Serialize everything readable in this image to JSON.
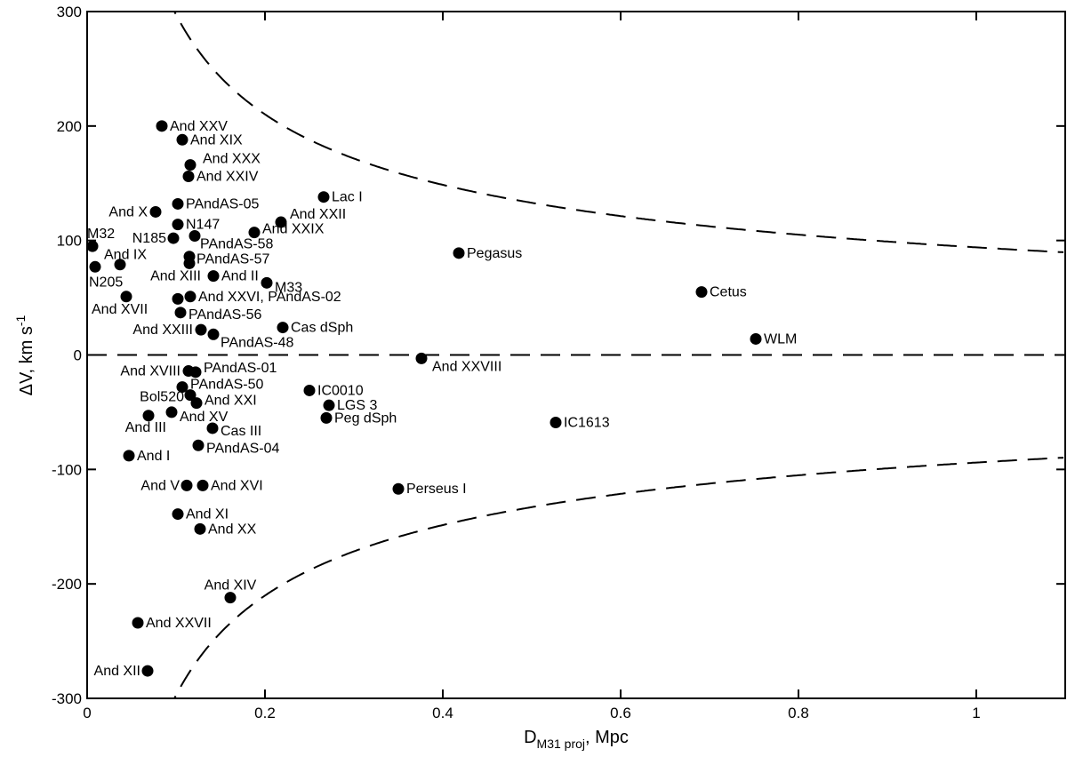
{
  "chart_data": {
    "type": "scatter",
    "title": "",
    "xlabel": {
      "main": "D",
      "sub": "M31 proj",
      "rest": ", Mpc"
    },
    "ylabel": {
      "main": "ΔV, km s",
      "sup": "-1"
    },
    "xlim": [
      0,
      1.1
    ],
    "ylim": [
      -300,
      300
    ],
    "xticks": [
      0,
      0.2,
      0.4,
      0.6,
      0.8,
      1
    ],
    "xtick_labels": [
      "0",
      "0.2",
      "0.4",
      "0.6",
      "0.8",
      "1"
    ],
    "yticks": [
      -300,
      -200,
      -100,
      0,
      100,
      200,
      300
    ],
    "ytick_labels": [
      "-300",
      "-200",
      "-100",
      "0",
      "100",
      "200",
      "300"
    ],
    "grid": false,
    "curves": [
      {
        "name": "upper-escape-curve",
        "formula": "94/sqrt(x)",
        "style": "dashed"
      },
      {
        "name": "lower-escape-curve",
        "formula": "-94/sqrt(x)",
        "style": "dashed"
      },
      {
        "name": "zero-line",
        "formula": "0",
        "style": "dashed"
      }
    ],
    "points": [
      {
        "label": "And XXV",
        "x": 0.084,
        "y": 200
      },
      {
        "label": "And XIX",
        "x": 0.107,
        "y": 188
      },
      {
        "label": "And XXX",
        "x": 0.116,
        "y": 166
      },
      {
        "label": "And XXIV",
        "x": 0.114,
        "y": 156
      },
      {
        "label": "PAndAS-05",
        "x": 0.102,
        "y": 132
      },
      {
        "label": "And X",
        "x": 0.077,
        "y": 125
      },
      {
        "label": "N147",
        "x": 0.102,
        "y": 114
      },
      {
        "label": "N185",
        "x": 0.097,
        "y": 102
      },
      {
        "label": "PAndAS-58",
        "x": 0.121,
        "y": 104
      },
      {
        "label": "M32",
        "x": 0.006,
        "y": 95
      },
      {
        "label": "And IX",
        "x": 0.037,
        "y": 79
      },
      {
        "label": "N205",
        "x": 0.009,
        "y": 77
      },
      {
        "label": "PAndAS-57",
        "x": 0.115,
        "y": 86
      },
      {
        "label": "And XIII",
        "x": 0.115,
        "y": 80
      },
      {
        "label": "And II",
        "x": 0.142,
        "y": 69
      },
      {
        "label": "M33",
        "x": 0.202,
        "y": 63
      },
      {
        "label": "And XVII",
        "x": 0.044,
        "y": 51
      },
      {
        "label": "And XXVI, PAndAS-02",
        "x": 0.116,
        "y": 51
      },
      {
        "label": "",
        "x": 0.102,
        "y": 49
      },
      {
        "label": "PAndAS-56",
        "x": 0.105,
        "y": 37
      },
      {
        "label": "And XXIII",
        "x": 0.128,
        "y": 22
      },
      {
        "label": "PAndAS-48",
        "x": 0.142,
        "y": 18
      },
      {
        "label": "Cas dSph",
        "x": 0.22,
        "y": 24
      },
      {
        "label": "Lac I",
        "x": 0.266,
        "y": 138
      },
      {
        "label": "And XXII",
        "x": 0.218,
        "y": 116
      },
      {
        "label": "And XXIX",
        "x": 0.188,
        "y": 107
      },
      {
        "label": "Pegasus",
        "x": 0.418,
        "y": 89
      },
      {
        "label": "Cetus",
        "x": 0.691,
        "y": 55
      },
      {
        "label": "WLM",
        "x": 0.752,
        "y": 14
      },
      {
        "label": "And XXVIII",
        "x": 0.376,
        "y": -3
      },
      {
        "label": "And XVIII",
        "x": 0.114,
        "y": -14
      },
      {
        "label": "PAndAS-01",
        "x": 0.122,
        "y": -15
      },
      {
        "label": "PAndAS-50",
        "x": 0.107,
        "y": -28
      },
      {
        "label": "IC0010",
        "x": 0.25,
        "y": -31
      },
      {
        "label": "Bol520",
        "x": 0.116,
        "y": -35
      },
      {
        "label": "And XXI",
        "x": 0.123,
        "y": -42
      },
      {
        "label": "LGS 3",
        "x": 0.272,
        "y": -44
      },
      {
        "label": "Peg dSph",
        "x": 0.269,
        "y": -55
      },
      {
        "label": "And XV",
        "x": 0.095,
        "y": -50
      },
      {
        "label": "And III",
        "x": 0.069,
        "y": -53
      },
      {
        "label": "IC1613",
        "x": 0.527,
        "y": -59
      },
      {
        "label": "Cas III",
        "x": 0.141,
        "y": -64
      },
      {
        "label": "PAndAS-04",
        "x": 0.125,
        "y": -79
      },
      {
        "label": "And I",
        "x": 0.047,
        "y": -88
      },
      {
        "label": "Perseus I",
        "x": 0.35,
        "y": -117
      },
      {
        "label": "And V",
        "x": 0.112,
        "y": -114
      },
      {
        "label": "And XVI",
        "x": 0.13,
        "y": -114
      },
      {
        "label": "And XI",
        "x": 0.102,
        "y": -139
      },
      {
        "label": "And XX",
        "x": 0.127,
        "y": -152
      },
      {
        "label": "And XIV",
        "x": 0.161,
        "y": -212
      },
      {
        "label": "And XXVII",
        "x": 0.057,
        "y": -234
      },
      {
        "label": "And XII",
        "x": 0.068,
        "y": -276
      }
    ]
  }
}
